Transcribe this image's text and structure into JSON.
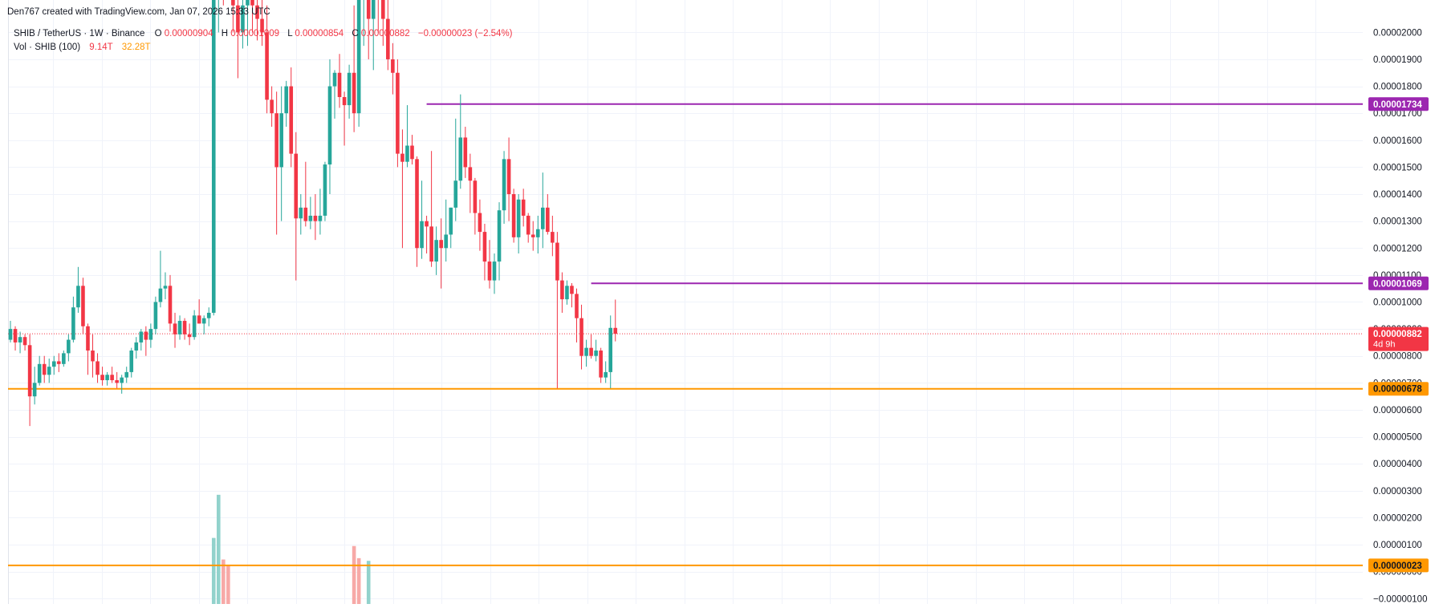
{
  "header": {
    "credit": "Den767 created with TradingView.com, Jan 07, 2026 15:33 UTC",
    "symbol": "SHIB / TetherUS · 1W · Binance",
    "o_label": "O",
    "o_value": "0.00000904",
    "h_label": "H",
    "h_value": "0.00001009",
    "l_label": "L",
    "l_value": "0.00000854",
    "c_label": "C",
    "c_value": "0.00000882",
    "change": "−0.00000023 (−2.54%)",
    "vol_label": "Vol · SHIB (100)",
    "vol_a": "9.14T",
    "vol_b": "32.28T"
  },
  "colors": {
    "up": "#26a69a",
    "down": "#f23645",
    "vol_up": "#92d2cc",
    "vol_down": "#f7a9a7",
    "level_purple": "#9c27b0",
    "level_orange": "#ff9800",
    "grid": "#f0f3fa",
    "axis_text": "#131722"
  },
  "chart_data": {
    "type": "candlestick",
    "interval": "1W",
    "y_tick_labels": [
      "0.00002000",
      "0.00001900",
      "0.00001800",
      "0.00001700",
      "0.00001600",
      "0.00001500",
      "0.00001400",
      "0.00001300",
      "0.00001200",
      "0.00001100",
      "0.00001000",
      "0.00000900",
      "0.00000800",
      "0.00000700",
      "0.00000600",
      "0.00000500",
      "0.00000400",
      "0.00000300",
      "0.00000200",
      "0.00000100",
      "0.00000000",
      "−0.00000100"
    ],
    "y_tick_values": [
      2e-05,
      1.9e-05,
      1.8e-05,
      1.7e-05,
      1.6e-05,
      1.5e-05,
      1.4e-05,
      1.3e-05,
      1.2e-05,
      1.1e-05,
      1e-05,
      9e-06,
      8e-06,
      7e-06,
      6e-06,
      5e-06,
      4e-06,
      3e-06,
      2e-06,
      1e-06,
      0,
      -1e-06
    ],
    "ylim": [
      -1.2e-06,
      2.12e-05
    ],
    "grid": true,
    "candles": [
      [
        8.6e-06,
        9.3e-06,
        8.5e-06,
        9e-06
      ],
      [
        9e-06,
        9.1e-06,
        8.2e-06,
        8.5e-06
      ],
      [
        8.5e-06,
        8.9e-06,
        8.1e-06,
        8.7e-06
      ],
      [
        8.7e-06,
        8.8e-06,
        8.2e-06,
        8.4e-06
      ],
      [
        8.4e-06,
        8.8e-06,
        5.4e-06,
        6.5e-06
      ],
      [
        6.5e-06,
        7.6e-06,
        6.2e-06,
        7e-06
      ],
      [
        7e-06,
        8e-06,
        6.9e-06,
        7.7e-06
      ],
      [
        7.7e-06,
        8e-06,
        7e-06,
        7.3e-06
      ],
      [
        7.3e-06,
        7.9e-06,
        7e-06,
        7.6e-06
      ],
      [
        7.6e-06,
        8e-06,
        7.3e-06,
        7.8e-06
      ],
      [
        7.8e-06,
        8.1e-06,
        7.4e-06,
        7.7e-06
      ],
      [
        7.7e-06,
        8.2e-06,
        7.6e-06,
        8.1e-06
      ],
      [
        8.1e-06,
        8.8e-06,
        7.8e-06,
        8.6e-06
      ],
      [
        8.6e-06,
        1.02e-05,
        8.5e-06,
        9.8e-06
      ],
      [
        9.8e-06,
        1.13e-05,
        9.6e-06,
        1.06e-05
      ],
      [
        1.06e-05,
        1.09e-05,
        8.8e-06,
        9.1e-06
      ],
      [
        9.1e-06,
        9.2e-06,
        7.3e-06,
        8.2e-06
      ],
      [
        8.2e-06,
        8.8e-06,
        7.2e-06,
        7.8e-06
      ],
      [
        7.8e-06,
        8.1e-06,
        7e-06,
        7.3e-06
      ],
      [
        7.3e-06,
        7.6e-06,
        6.9e-06,
        7.1e-06
      ],
      [
        7.1e-06,
        7.4e-06,
        6.9e-06,
        7.3e-06
      ],
      [
        7.3e-06,
        7.6e-06,
        7e-06,
        7.1e-06
      ],
      [
        7.1e-06,
        7.4e-06,
        6.8e-06,
        7e-06
      ],
      [
        7e-06,
        7.3e-06,
        6.6e-06,
        7.2e-06
      ],
      [
        7.2e-06,
        7.6e-06,
        7e-06,
        7.4e-06
      ],
      [
        7.4e-06,
        8.3e-06,
        7.2e-06,
        8.2e-06
      ],
      [
        8.2e-06,
        8.7e-06,
        7.9e-06,
        8.5e-06
      ],
      [
        8.5e-06,
        9e-06,
        8.2e-06,
        8.9e-06
      ],
      [
        8.9e-06,
        9.1e-06,
        8e-06,
        8.6e-06
      ],
      [
        8.6e-06,
        9.2e-06,
        8.3e-06,
        9e-06
      ],
      [
        9e-06,
        1.02e-05,
        8.8e-06,
        1e-05
      ],
      [
        1e-05,
        1.19e-05,
        9.8e-06,
        1.05e-05
      ],
      [
        1.05e-05,
        1.11e-05,
        1.01e-05,
        1.06e-05
      ],
      [
        1.06e-05,
        1.1e-05,
        8.9e-06,
        9.2e-06
      ],
      [
        9.2e-06,
        9.6e-06,
        8.3e-06,
        8.8e-06
      ],
      [
        8.8e-06,
        9.5e-06,
        8.6e-06,
        9.3e-06
      ],
      [
        9.3e-06,
        9.4e-06,
        8.6e-06,
        8.8e-06
      ],
      [
        8.8e-06,
        9.2e-06,
        8.4e-06,
        8.7e-06
      ],
      [
        8.7e-06,
        9.7e-06,
        8.6e-06,
        9.5e-06
      ],
      [
        9.5e-06,
        1.01e-05,
        9.2e-06,
        9.2e-06
      ],
      [
        9.2e-06,
        9.5e-06,
        8.8e-06,
        9.4e-06
      ],
      [
        9.4e-06,
        9.8e-06,
        9.1e-06,
        9.6e-06
      ],
      [
        9.6e-06,
        2.9e-05,
        9.5e-06,
        2.3e-05
      ],
      [
        2.3e-05,
        2.8e-05,
        2e-05,
        2.5e-05
      ],
      [
        2.5e-05,
        2.9e-05,
        2.1e-05,
        2.4e-05
      ],
      [
        2.4e-05,
        2.6e-05,
        2.2e-05,
        2.5e-05
      ],
      [
        2.5e-05,
        2.6e-05,
        2e-05,
        2.1e-05
      ],
      [
        2.1e-05,
        2.2e-05,
        1.83e-05,
        2e-05
      ],
      [
        2e-05,
        2.3e-05,
        1.94e-05,
        2.1e-05
      ],
      [
        2.1e-05,
        2.25e-05,
        1.95e-05,
        2.2e-05
      ],
      [
        2.2e-05,
        2.4e-05,
        2e-05,
        2.1e-05
      ],
      [
        2.1e-05,
        2.2e-05,
        1.97e-05,
        2.05e-05
      ],
      [
        2.05e-05,
        2.15e-05,
        1.95e-05,
        2e-05
      ],
      [
        2e-05,
        2.1e-05,
        1.7e-05,
        1.75e-05
      ],
      [
        1.75e-05,
        1.8e-05,
        1.65e-05,
        1.7e-05
      ],
      [
        1.7e-05,
        1.78e-05,
        1.25e-05,
        1.5e-05
      ],
      [
        1.5e-05,
        1.8e-05,
        1.3e-05,
        1.7e-05
      ],
      [
        1.7e-05,
        1.82e-05,
        1.65e-05,
        1.8e-05
      ],
      [
        1.8e-05,
        1.87e-05,
        1.5e-05,
        1.55e-05
      ],
      [
        1.55e-05,
        1.63e-05,
        1.08e-05,
        1.31e-05
      ],
      [
        1.31e-05,
        1.4e-05,
        1.25e-05,
        1.35e-05
      ],
      [
        1.35e-05,
        1.52e-05,
        1.28e-05,
        1.3e-05
      ],
      [
        1.3e-05,
        1.39e-05,
        1.27e-05,
        1.32e-05
      ],
      [
        1.32e-05,
        1.4e-05,
        1.23e-05,
        1.3e-05
      ],
      [
        1.3e-05,
        1.42e-05,
        1.25e-05,
        1.32e-05
      ],
      [
        1.32e-05,
        1.52e-05,
        1.3e-05,
        1.51e-05
      ],
      [
        1.51e-05,
        1.9e-05,
        1.4e-05,
        1.8e-05
      ],
      [
        1.8e-05,
        1.86e-05,
        1.68e-05,
        1.85e-05
      ],
      [
        1.85e-05,
        1.92e-05,
        1.72e-05,
        1.76e-05
      ],
      [
        1.76e-05,
        1.78e-05,
        1.58e-05,
        1.73e-05
      ],
      [
        1.73e-05,
        1.88e-05,
        1.68e-05,
        1.85e-05
      ],
      [
        1.85e-05,
        2.1e-05,
        1.63e-05,
        1.7e-05
      ],
      [
        1.7e-05,
        2.15e-05,
        1.65e-05,
        2.15e-05
      ],
      [
        2.15e-05,
        2.25e-05,
        1.95e-05,
        2.2e-05
      ],
      [
        2.2e-05,
        2.25e-05,
        1.9e-05,
        2.05e-05
      ],
      [
        2.05e-05,
        2.25e-05,
        1.86e-05,
        2.2e-05
      ],
      [
        2.2e-05,
        2.3e-05,
        2e-05,
        2.15e-05
      ],
      [
        2.15e-05,
        2.2e-05,
        1.95e-05,
        2.05e-05
      ],
      [
        2.05e-05,
        2.15e-05,
        1.86e-05,
        1.9e-05
      ],
      [
        1.9e-05,
        1.96e-05,
        1.77e-05,
        1.85e-05
      ],
      [
        1.85e-05,
        1.9e-05,
        1.5e-05,
        1.55e-05
      ],
      [
        1.55e-05,
        1.64e-05,
        1.2e-05,
        1.52e-05
      ],
      [
        1.52e-05,
        1.73e-05,
        1.5e-05,
        1.58e-05
      ],
      [
        1.58e-05,
        1.62e-05,
        1.51e-05,
        1.53e-05
      ],
      [
        1.53e-05,
        1.54e-05,
        1.13e-05,
        1.2e-05
      ],
      [
        1.2e-05,
        1.45e-05,
        1.16e-05,
        1.3e-05
      ],
      [
        1.3e-05,
        1.32e-05,
        1.18e-05,
        1.28e-05
      ],
      [
        1.28e-05,
        1.56e-05,
        1.13e-05,
        1.15e-05
      ],
      [
        1.15e-05,
        1.28e-05,
        1.1e-05,
        1.23e-05
      ],
      [
        1.23e-05,
        1.31e-05,
        1.05e-05,
        1.2e-05
      ],
      [
        1.2e-05,
        1.38e-05,
        1.15e-05,
        1.25e-05
      ],
      [
        1.25e-05,
        1.35e-05,
        1.2e-05,
        1.35e-05
      ],
      [
        1.35e-05,
        1.68e-05,
        1.3e-05,
        1.45e-05
      ],
      [
        1.45e-05,
        1.77e-05,
        1.42e-05,
        1.61e-05
      ],
      [
        1.61e-05,
        1.65e-05,
        1.46e-05,
        1.5e-05
      ],
      [
        1.5e-05,
        1.55e-05,
        1.33e-05,
        1.45e-05
      ],
      [
        1.45e-05,
        1.46e-05,
        1.25e-05,
        1.33e-05
      ],
      [
        1.33e-05,
        1.38e-05,
        1.19e-05,
        1.26e-05
      ],
      [
        1.26e-05,
        1.29e-05,
        1.08e-05,
        1.15e-05
      ],
      [
        1.15e-05,
        1.23e-05,
        1.05e-05,
        1.08e-05
      ],
      [
        1.08e-05,
        1.18e-05,
        1.03e-05,
        1.15e-05
      ],
      [
        1.15e-05,
        1.37e-05,
        1.08e-05,
        1.34e-05
      ],
      [
        1.34e-05,
        1.56e-05,
        1.29e-05,
        1.53e-05
      ],
      [
        1.53e-05,
        1.61e-05,
        1.3e-05,
        1.4e-05
      ],
      [
        1.4e-05,
        1.42e-05,
        1.22e-05,
        1.24e-05
      ],
      [
        1.24e-05,
        1.4e-05,
        1.18e-05,
        1.38e-05
      ],
      [
        1.38e-05,
        1.42e-05,
        1.28e-05,
        1.32e-05
      ],
      [
        1.32e-05,
        1.33e-05,
        1.22e-05,
        1.25e-05
      ],
      [
        1.25e-05,
        1.3e-05,
        1.19e-05,
        1.24e-05
      ],
      [
        1.24e-05,
        1.32e-05,
        1.18e-05,
        1.27e-05
      ],
      [
        1.27e-05,
        1.48e-05,
        1.2e-05,
        1.35e-05
      ],
      [
        1.35e-05,
        1.4e-05,
        1.25e-05,
        1.26e-05
      ],
      [
        1.26e-05,
        1.32e-05,
        1.17e-05,
        1.22e-05
      ],
      [
        1.22e-05,
        1.26e-05,
        6.8e-06,
        1.08e-05
      ],
      [
        1.08e-05,
        1.11e-05,
        9.6e-06,
        1.01e-05
      ],
      [
        1.01e-05,
        1.08e-05,
        9.9e-06,
        1.06e-05
      ],
      [
        1.06e-05,
        1.07e-05,
        9.8e-06,
        1.03e-05
      ],
      [
        1.03e-05,
        1.05e-05,
        8.5e-06,
        9.4e-06
      ],
      [
        9.4e-06,
        9.9e-06,
        7.5e-06,
        8e-06
      ],
      [
        8e-06,
        8.6e-06,
        7.6e-06,
        8.3e-06
      ],
      [
        8.3e-06,
        8.8e-06,
        7.9e-06,
        8e-06
      ],
      [
        8e-06,
        8.6e-06,
        7.8e-06,
        8.2e-06
      ],
      [
        8.2e-06,
        8.3e-06,
        7e-06,
        7.2e-06
      ],
      [
        7.2e-06,
        7.8e-06,
        7e-06,
        7.4e-06
      ],
      [
        7.4e-06,
        9.5e-06,
        6.8e-06,
        9.04e-06
      ],
      [
        9.04e-06,
        1.009e-05,
        8.54e-06,
        8.82e-06
      ]
    ],
    "volume_bars": [
      {
        "index": 42,
        "value": 1.25e-06,
        "dir": "up"
      },
      {
        "index": 43,
        "value": 2.85e-06,
        "dir": "up"
      },
      {
        "index": 44,
        "value": 4.5e-07,
        "dir": "down"
      },
      {
        "index": 45,
        "value": 2.5e-07,
        "dir": "down"
      },
      {
        "index": 71,
        "value": 9.5e-07,
        "dir": "down"
      },
      {
        "index": 72,
        "value": 5e-07,
        "dir": "down"
      },
      {
        "index": 74,
        "value": 4e-07,
        "dir": "up"
      }
    ],
    "levels": [
      {
        "label": "0.00001734",
        "value": 1.734e-05,
        "color_key": "level_purple",
        "from_index": 86
      },
      {
        "label": "0.00001069",
        "value": 1.069e-05,
        "color_key": "level_purple",
        "from_index": 120
      },
      {
        "label": "0.00000882",
        "value": 8.82e-06,
        "color_key": "down",
        "from_index": 0,
        "dotted": true,
        "sub": "4d 9h"
      },
      {
        "label": "0.00000678",
        "value": 6.78e-06,
        "color_key": "level_orange",
        "from_index": 0
      },
      {
        "label": "0.00000023",
        "value": 2.3e-07,
        "color_key": "level_orange",
        "from_index": 0
      }
    ]
  }
}
